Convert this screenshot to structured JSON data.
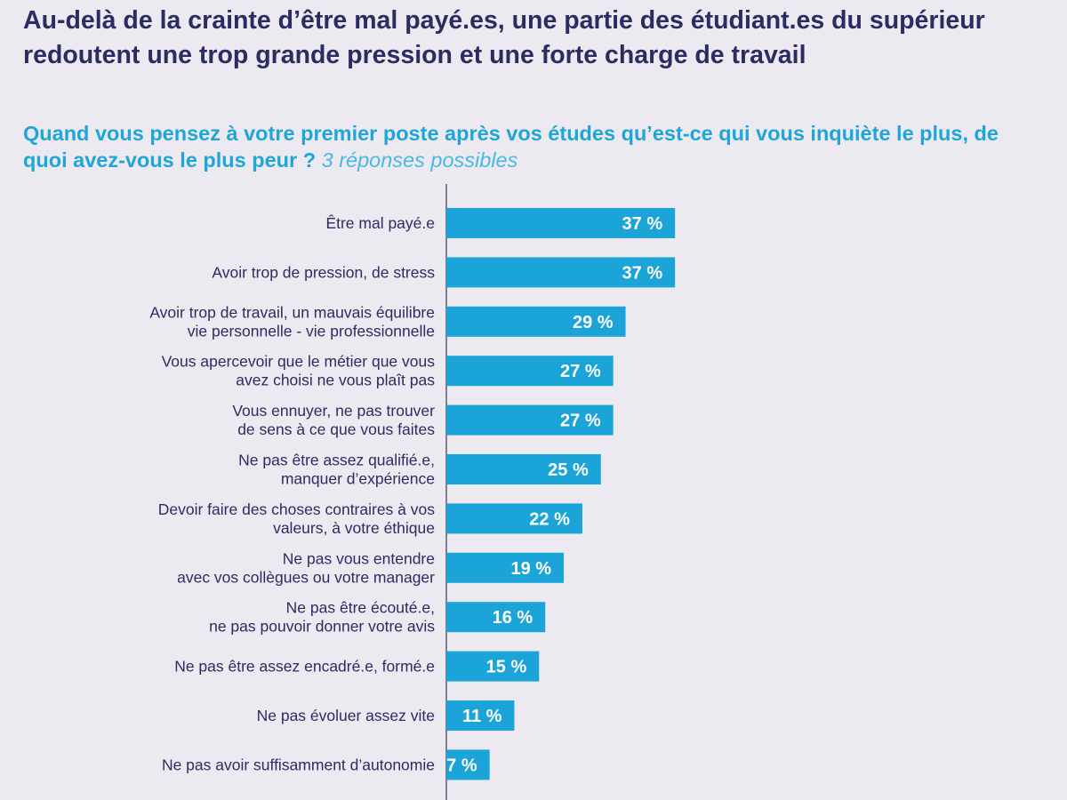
{
  "title": "Au-delà de la crainte d’être mal payé.es, une partie des étudiant.es du supérieur redoutent une trop grande pression et une forte charge de travail",
  "subtitle": {
    "question": "Quand vous pensez à votre premier poste après vos études qu’est-ce qui vous inquiète le plus, de quoi avez-vous le plus peur ?",
    "note": "3 réponses possibles"
  },
  "colors": {
    "bar": "#1ba4d7",
    "axis": "#5a5c78",
    "title": "#2b2d62",
    "subtitle": "#1fa6d6",
    "background": "#ece9f0"
  },
  "chart_data": {
    "type": "bar",
    "orientation": "horizontal",
    "unit": "%",
    "categories": [
      [
        "Être mal payé.e"
      ],
      [
        "Avoir trop de pression, de stress"
      ],
      [
        "Avoir trop de travail, un mauvais équilibre",
        "vie personnelle - vie professionnelle"
      ],
      [
        "Vous apercevoir que le métier que vous",
        "avez choisi ne vous plaît pas"
      ],
      [
        "Vous ennuyer, ne pas trouver",
        "de sens à ce que vous faites"
      ],
      [
        "Ne pas être assez qualifié.e,",
        "manquer d’expérience"
      ],
      [
        "Devoir faire des choses contraires à vos",
        "valeurs, à votre éthique"
      ],
      [
        "Ne pas vous entendre",
        "avec vos collègues ou votre manager"
      ],
      [
        "Ne pas être écouté.e,",
        "ne pas pouvoir donner votre avis"
      ],
      [
        "Ne pas être assez encadré.e, formé.e"
      ],
      [
        "Ne pas évoluer assez vite"
      ],
      [
        "Ne pas avoir suffisamment d’autonomie"
      ]
    ],
    "values": [
      37,
      37,
      29,
      27,
      27,
      25,
      22,
      19,
      16,
      15,
      11,
      7
    ],
    "value_labels": [
      "37 %",
      "37 %",
      "29 %",
      "27 %",
      "27 %",
      "25 %",
      "22 %",
      "19 %",
      "16 %",
      "15 %",
      "11 %",
      "7 %"
    ],
    "xlabel": "",
    "ylabel": "",
    "grid": false
  }
}
